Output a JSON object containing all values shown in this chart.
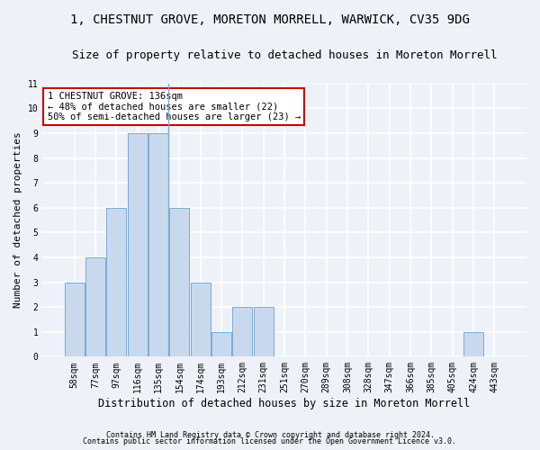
{
  "title": "1, CHESTNUT GROVE, MORETON MORRELL, WARWICK, CV35 9DG",
  "subtitle": "Size of property relative to detached houses in Moreton Morrell",
  "xlabel": "Distribution of detached houses by size in Moreton Morrell",
  "ylabel": "Number of detached properties",
  "categories": [
    "58sqm",
    "77sqm",
    "97sqm",
    "116sqm",
    "135sqm",
    "154sqm",
    "174sqm",
    "193sqm",
    "212sqm",
    "231sqm",
    "251sqm",
    "270sqm",
    "289sqm",
    "308sqm",
    "328sqm",
    "347sqm",
    "366sqm",
    "385sqm",
    "405sqm",
    "424sqm",
    "443sqm"
  ],
  "values": [
    3,
    4,
    6,
    9,
    9,
    6,
    3,
    1,
    2,
    2,
    0,
    0,
    0,
    0,
    0,
    0,
    0,
    0,
    0,
    1,
    0
  ],
  "bar_color": "#c9d9ed",
  "bar_edge_color": "#7aaad4",
  "subject_line_index": 4,
  "annotation_text": "1 CHESTNUT GROVE: 136sqm\n← 48% of detached houses are smaller (22)\n50% of semi-detached houses are larger (23) →",
  "annotation_box_color": "#ffffff",
  "annotation_border_color": "#cc0000",
  "ylim": [
    0,
    11
  ],
  "yticks": [
    0,
    1,
    2,
    3,
    4,
    5,
    6,
    7,
    8,
    9,
    10,
    11
  ],
  "footer1": "Contains HM Land Registry data © Crown copyright and database right 2024.",
  "footer2": "Contains public sector information licensed under the Open Government Licence v3.0.",
  "background_color": "#eef2f8",
  "plot_background_color": "#eef2f8",
  "grid_color": "#ffffff",
  "title_fontsize": 10,
  "subtitle_fontsize": 9,
  "xlabel_fontsize": 8.5,
  "ylabel_fontsize": 8,
  "tick_fontsize": 7,
  "annotation_fontsize": 7.5,
  "footer_fontsize": 6
}
